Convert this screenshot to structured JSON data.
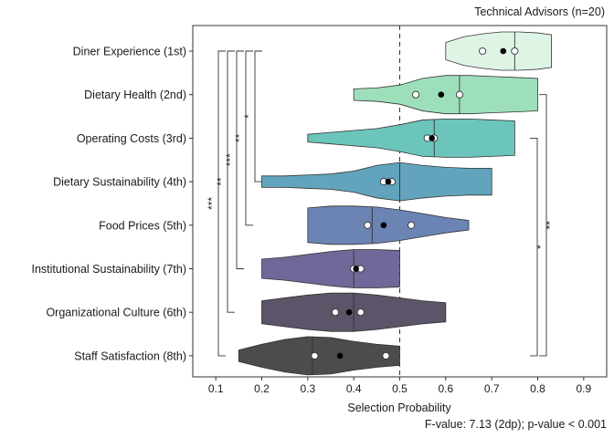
{
  "chart_data": {
    "type": "violin",
    "title": "Technical Advisors (n=20)",
    "xlabel": "Selection Probability",
    "footnote": "F-value: 7.13 (2dp); p-value < 0.001",
    "xlim": [
      0.05,
      0.95
    ],
    "xticks": [
      "0.1",
      "0.2",
      "0.3",
      "0.4",
      "0.5",
      "0.6",
      "0.7",
      "0.8",
      "0.9"
    ],
    "xtick_values": [
      0.1,
      0.2,
      0.3,
      0.4,
      0.5,
      0.6,
      0.7,
      0.8,
      0.9
    ],
    "reference_line": 0.5,
    "categories": [
      {
        "label": "Diner Experience (1st)",
        "min": 0.6,
        "max": 0.83,
        "median": 0.75,
        "mean": 0.725,
        "points": [
          0.68,
          0.75
        ],
        "color": "#def5e6",
        "shape": [
          [
            0.6,
            0.45
          ],
          [
            0.64,
            0.75
          ],
          [
            0.68,
            0.9
          ],
          [
            0.72,
            1.0
          ],
          [
            0.76,
            1.0
          ],
          [
            0.8,
            0.95
          ],
          [
            0.83,
            0.85
          ]
        ]
      },
      {
        "label": "Dietary Health (2nd)",
        "min": 0.4,
        "max": 0.8,
        "median": 0.63,
        "mean": 0.59,
        "points": [
          0.535,
          0.63
        ],
        "color": "#9edfbb",
        "shape": [
          [
            0.4,
            0.3
          ],
          [
            0.45,
            0.35
          ],
          [
            0.5,
            0.5
          ],
          [
            0.55,
            0.85
          ],
          [
            0.6,
            1.0
          ],
          [
            0.65,
            1.0
          ],
          [
            0.7,
            0.95
          ],
          [
            0.75,
            0.9
          ],
          [
            0.8,
            0.85
          ]
        ]
      },
      {
        "label": "Operating Costs (3rd)",
        "min": 0.3,
        "max": 0.75,
        "median": 0.575,
        "mean": 0.57,
        "points": [
          0.56,
          0.575
        ],
        "color": "#6cc5ba",
        "shape": [
          [
            0.3,
            0.2
          ],
          [
            0.35,
            0.3
          ],
          [
            0.4,
            0.4
          ],
          [
            0.45,
            0.5
          ],
          [
            0.5,
            0.7
          ],
          [
            0.55,
            0.95
          ],
          [
            0.6,
            1.0
          ],
          [
            0.65,
            1.0
          ],
          [
            0.7,
            0.95
          ],
          [
            0.75,
            0.9
          ]
        ]
      },
      {
        "label": "Dietary Sustainability (4th)",
        "min": 0.2,
        "max": 0.7,
        "median": 0.5,
        "mean": 0.475,
        "points": [
          0.465,
          0.483
        ],
        "color": "#62a4bd",
        "shape": [
          [
            0.2,
            0.3
          ],
          [
            0.25,
            0.3
          ],
          [
            0.3,
            0.35
          ],
          [
            0.35,
            0.4
          ],
          [
            0.4,
            0.55
          ],
          [
            0.45,
            0.85
          ],
          [
            0.5,
            1.0
          ],
          [
            0.55,
            0.85
          ],
          [
            0.6,
            0.75
          ],
          [
            0.65,
            0.7
          ],
          [
            0.7,
            0.7
          ]
        ]
      },
      {
        "label": "Food Prices (5th)",
        "min": 0.3,
        "max": 0.65,
        "median": 0.44,
        "mean": 0.465,
        "points": [
          0.43,
          0.525
        ],
        "color": "#6b84b4",
        "shape": [
          [
            0.3,
            0.9
          ],
          [
            0.35,
            1.0
          ],
          [
            0.4,
            1.0
          ],
          [
            0.45,
            0.95
          ],
          [
            0.5,
            0.8
          ],
          [
            0.55,
            0.6
          ],
          [
            0.6,
            0.4
          ],
          [
            0.65,
            0.25
          ]
        ]
      },
      {
        "label": "Institutional Sustainability (7th)",
        "min": 0.2,
        "max": 0.5,
        "median": 0.4,
        "mean": 0.405,
        "points": [
          0.4,
          0.415
        ],
        "color": "#6f6898",
        "shape": [
          [
            0.2,
            0.5
          ],
          [
            0.25,
            0.6
          ],
          [
            0.3,
            0.75
          ],
          [
            0.35,
            0.9
          ],
          [
            0.4,
            1.0
          ],
          [
            0.45,
            1.0
          ],
          [
            0.5,
            0.95
          ]
        ]
      },
      {
        "label": "Organizational Culture (6th)",
        "min": 0.2,
        "max": 0.6,
        "median": 0.4,
        "mean": 0.39,
        "points": [
          0.36,
          0.415
        ],
        "color": "#5c5468",
        "shape": [
          [
            0.2,
            0.6
          ],
          [
            0.25,
            0.75
          ],
          [
            0.3,
            0.9
          ],
          [
            0.35,
            1.0
          ],
          [
            0.4,
            1.0
          ],
          [
            0.45,
            0.9
          ],
          [
            0.5,
            0.75
          ],
          [
            0.55,
            0.6
          ],
          [
            0.6,
            0.5
          ]
        ]
      },
      {
        "label": "Staff Satisfaction (8th)",
        "min": 0.15,
        "max": 0.5,
        "median": 0.31,
        "mean": 0.37,
        "points": [
          0.315,
          0.47
        ],
        "color": "#4d4b4c",
        "shape": [
          [
            0.15,
            0.3
          ],
          [
            0.2,
            0.6
          ],
          [
            0.25,
            0.85
          ],
          [
            0.3,
            1.0
          ],
          [
            0.35,
            0.95
          ],
          [
            0.4,
            0.75
          ],
          [
            0.45,
            0.6
          ],
          [
            0.5,
            0.5
          ]
        ]
      }
    ],
    "significance_left": [
      {
        "from": "Diner Experience (1st)",
        "to": "Staff Satisfaction (8th)",
        "label": "***"
      },
      {
        "from": "Diner Experience (1st)",
        "to": "Organizational Culture (6th)",
        "label": "**"
      },
      {
        "from": "Diner Experience (1st)",
        "to": "Institutional Sustainability (7th)",
        "label": "***"
      },
      {
        "from": "Diner Experience (1st)",
        "to": "Food Prices (5th)",
        "label": "**"
      },
      {
        "from": "Diner Experience (1st)",
        "to": "Dietary Sustainability (4th)",
        "label": "*"
      }
    ],
    "significance_right": [
      {
        "from": "Operating Costs (3rd)",
        "to": "Staff Satisfaction (8th)",
        "label": "*"
      },
      {
        "from": "Dietary Health (2nd)",
        "to": "Staff Satisfaction (8th)",
        "label": "**"
      }
    ],
    "grid": false,
    "legend": "none"
  }
}
